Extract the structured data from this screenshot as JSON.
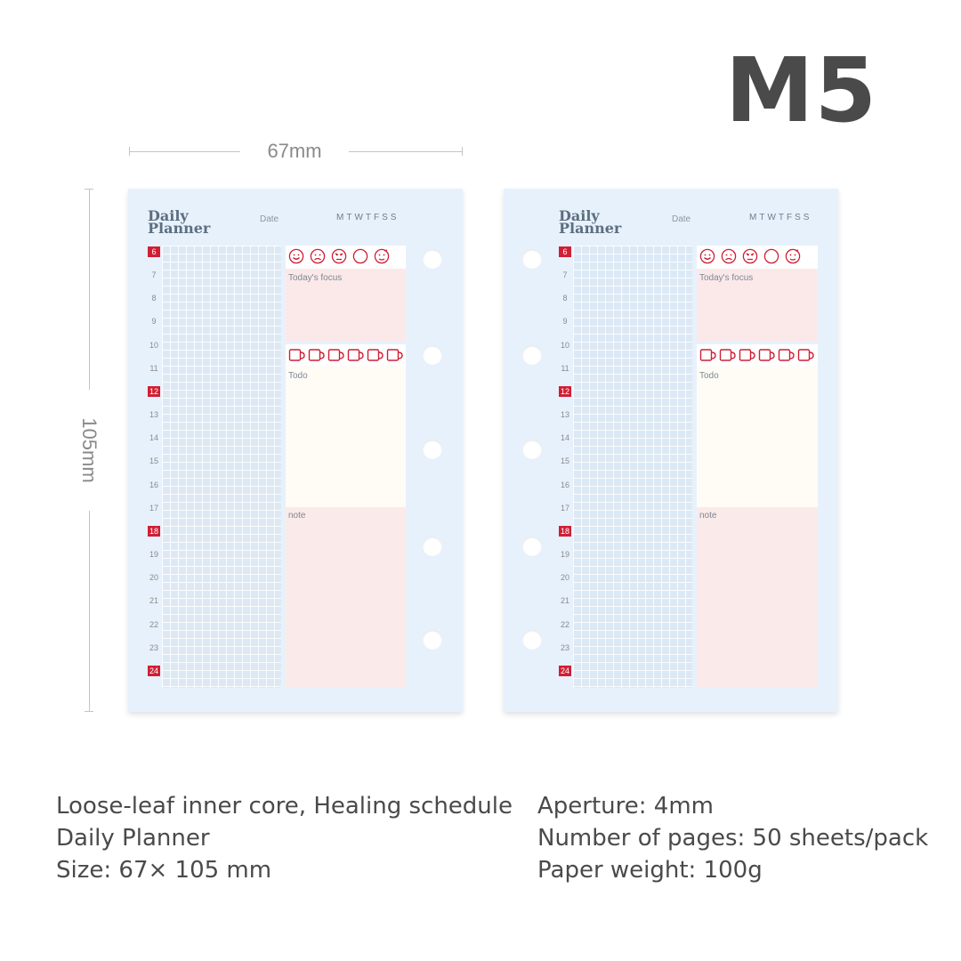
{
  "header": {
    "title": "M5"
  },
  "dimensions": {
    "width_label": "67mm",
    "height_label": "105mm"
  },
  "planner": {
    "brand_line1": "Daily",
    "brand_line2": "Planner",
    "date_label": "Date",
    "weekdays": "MTWTFSS",
    "focus_label": "Today's focus",
    "todo_label": "Todo",
    "note_label": "note",
    "hours": [
      "6",
      "7",
      "8",
      "9",
      "10",
      "11",
      "12",
      "13",
      "14",
      "15",
      "16",
      "17",
      "18",
      "19",
      "20",
      "21",
      "22",
      "23",
      "24"
    ],
    "highlighted_hours": [
      "6",
      "12",
      "18",
      "24"
    ],
    "mood_icons": [
      "smile-face-icon",
      "sad-face-icon",
      "angry-face-icon",
      "neutral-face-icon",
      "dizzy-face-icon"
    ],
    "cup_count": 6
  },
  "colors": {
    "accent_red": "#cf1f35",
    "sheet_blue": "#e7f1fb",
    "title_gray": "#4a4a4a"
  },
  "description": {
    "left": [
      "Loose-leaf inner core, Healing schedule",
      "Daily Planner",
      "Size: 67× 105 mm"
    ],
    "right": [
      "Aperture: 4mm",
      "Number of pages: 50 sheets/pack",
      "Paper weight: 100g"
    ]
  }
}
